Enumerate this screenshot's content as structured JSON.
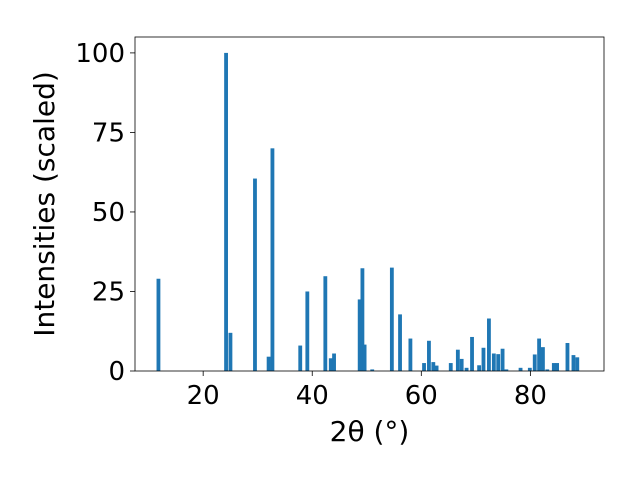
{
  "chart_data": {
    "type": "bar",
    "xlabel": "2θ (°)",
    "ylabel": "Intensities (scaled)",
    "xlim": [
      7.5,
      93.5
    ],
    "ylim": [
      0,
      105
    ],
    "xticks": [
      20,
      40,
      60,
      80
    ],
    "yticks": [
      0,
      25,
      50,
      75,
      100
    ],
    "grid": false,
    "color": "#1f77b4",
    "bar_width": 0.7,
    "series": [
      {
        "x": [
          11.8,
          24.2,
          25.0,
          29.5,
          32.0,
          32.7,
          37.8,
          39.1,
          42.4,
          43.4,
          44.0,
          48.7,
          49.2,
          49.6,
          51.0,
          54.6,
          56.1,
          58.0,
          60.5,
          61.4,
          62.2,
          62.8,
          65.4,
          66.7,
          67.4,
          68.3,
          69.3,
          70.6,
          71.4,
          72.4,
          73.3,
          74.1,
          74.9,
          75.6,
          78.2,
          79.9,
          80.8,
          81.6,
          82.3,
          83.1,
          84.3,
          84.9,
          86.8,
          87.9,
          88.6
        ],
        "values": [
          29.0,
          100.0,
          12.0,
          60.5,
          4.5,
          70.0,
          8.0,
          25.0,
          29.8,
          4.0,
          5.5,
          22.5,
          32.3,
          8.3,
          0.5,
          32.5,
          17.8,
          10.2,
          2.5,
          9.5,
          2.8,
          1.7,
          2.5,
          6.7,
          3.8,
          1.0,
          10.7,
          1.8,
          7.3,
          16.5,
          5.5,
          5.3,
          7.0,
          0.5,
          1.0,
          1.0,
          5.2,
          10.2,
          7.5,
          0.5,
          2.5,
          2.5,
          8.8,
          5.0,
          4.3
        ]
      }
    ]
  }
}
